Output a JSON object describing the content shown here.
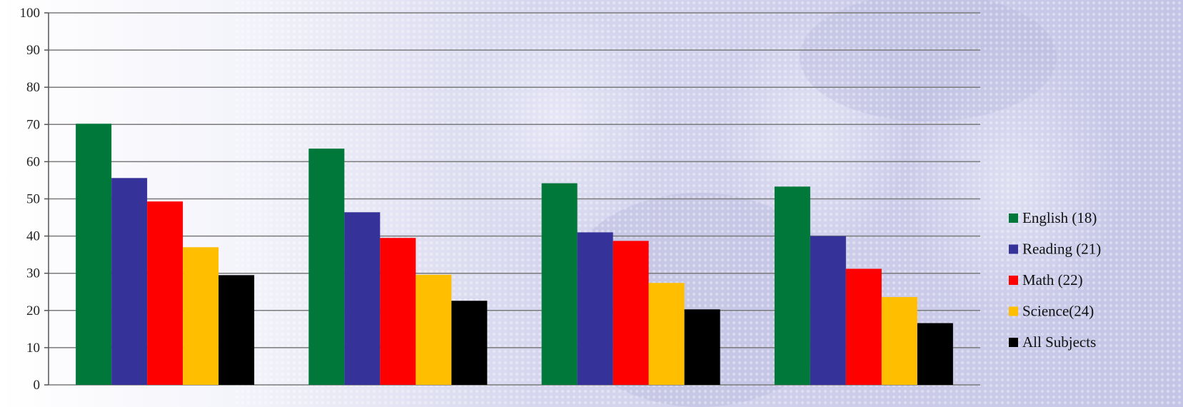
{
  "chart_data": {
    "type": "bar",
    "title": "",
    "xlabel": "",
    "ylabel": "",
    "ylim": [
      0,
      100
    ],
    "yticks": [
      0,
      10,
      20,
      30,
      40,
      50,
      60,
      70,
      80,
      90,
      100
    ],
    "grid": true,
    "legend_position": "right",
    "categories": [
      "",
      "",
      "",
      ""
    ],
    "series": [
      {
        "name": "English (18)",
        "color": "#00783A",
        "values": [
          70.2,
          63.5,
          54.2,
          53.3
        ]
      },
      {
        "name": "Reading (21)",
        "color": "#35339A",
        "values": [
          55.6,
          46.4,
          41.0,
          40.0
        ]
      },
      {
        "name": "Math (22)",
        "color": "#FF0000",
        "values": [
          49.3,
          39.5,
          38.7,
          31.2
        ]
      },
      {
        "name": "Science(24)",
        "color": "#FFBF00",
        "values": [
          37.0,
          29.6,
          27.4,
          23.6
        ]
      },
      {
        "name": "All Subjects",
        "color": "#000000",
        "values": [
          29.5,
          22.6,
          20.3,
          16.6
        ]
      }
    ]
  }
}
